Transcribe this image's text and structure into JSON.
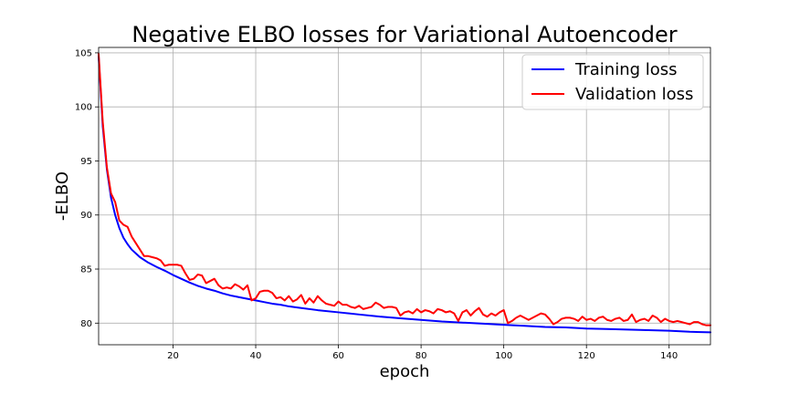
{
  "chart_data": {
    "type": "line",
    "title": "Negative ELBO losses for Variational Autoencoder",
    "xlabel": "epoch",
    "ylabel": "-ELBO",
    "xlim": [
      2,
      150
    ],
    "ylim": [
      78.0,
      105.5
    ],
    "xticks": [
      20,
      40,
      60,
      80,
      100,
      120,
      140
    ],
    "yticks": [
      80,
      85,
      90,
      95,
      100,
      105
    ],
    "grid": true,
    "legend": "top-right",
    "series": [
      {
        "name": "Training loss",
        "color": "#0000ff",
        "x": [
          2,
          3,
          4,
          5,
          6,
          7,
          8,
          9,
          10,
          12,
          14,
          16,
          18,
          20,
          22,
          24,
          26,
          28,
          30,
          32,
          34,
          36,
          38,
          40,
          42,
          44,
          46,
          48,
          50,
          55,
          60,
          65,
          70,
          75,
          80,
          85,
          90,
          95,
          100,
          105,
          110,
          115,
          120,
          125,
          130,
          135,
          140,
          145,
          150
        ],
        "y": [
          104.7,
          98.2,
          94.2,
          91.6,
          90.0,
          88.8,
          87.9,
          87.3,
          86.8,
          86.1,
          85.6,
          85.2,
          84.85,
          84.45,
          84.1,
          83.75,
          83.45,
          83.2,
          83.0,
          82.75,
          82.55,
          82.4,
          82.25,
          82.1,
          81.95,
          81.8,
          81.7,
          81.55,
          81.45,
          81.2,
          81.0,
          80.8,
          80.6,
          80.45,
          80.3,
          80.15,
          80.05,
          79.95,
          79.85,
          79.75,
          79.65,
          79.6,
          79.5,
          79.45,
          79.4,
          79.35,
          79.3,
          79.2,
          79.15
        ]
      },
      {
        "name": "Validation loss",
        "color": "#ff0000",
        "x": [
          2,
          3,
          4,
          5,
          6,
          7,
          8,
          9,
          10,
          11,
          12,
          13,
          14,
          15,
          16,
          17,
          18,
          19,
          20,
          21,
          22,
          23,
          24,
          25,
          26,
          27,
          28,
          29,
          30,
          31,
          32,
          33,
          34,
          35,
          36,
          37,
          38,
          39,
          40,
          41,
          42,
          43,
          44,
          45,
          46,
          47,
          48,
          49,
          50,
          51,
          52,
          53,
          54,
          55,
          56,
          57,
          58,
          59,
          60,
          61,
          62,
          63,
          64,
          65,
          66,
          67,
          68,
          69,
          70,
          71,
          72,
          73,
          74,
          75,
          76,
          77,
          78,
          79,
          80,
          81,
          82,
          83,
          84,
          85,
          86,
          87,
          88,
          89,
          90,
          91,
          92,
          93,
          94,
          95,
          96,
          97,
          98,
          99,
          100,
          101,
          102,
          103,
          104,
          105,
          106,
          107,
          108,
          109,
          110,
          111,
          112,
          113,
          114,
          115,
          116,
          117,
          118,
          119,
          120,
          121,
          122,
          123,
          124,
          125,
          126,
          127,
          128,
          129,
          130,
          131,
          132,
          133,
          134,
          135,
          136,
          137,
          138,
          139,
          140,
          141,
          142,
          143,
          144,
          145,
          146,
          147,
          148,
          149,
          150
        ],
        "y": [
          104.9,
          98.6,
          94.4,
          92.0,
          91.2,
          89.5,
          89.1,
          88.9,
          88.0,
          87.4,
          86.8,
          86.2,
          86.2,
          86.1,
          86.0,
          85.8,
          85.3,
          85.4,
          85.4,
          85.4,
          85.3,
          84.6,
          84.0,
          84.1,
          84.5,
          84.4,
          83.7,
          83.9,
          84.1,
          83.5,
          83.2,
          83.3,
          83.2,
          83.6,
          83.4,
          83.1,
          83.5,
          82.1,
          82.3,
          82.9,
          83.0,
          83.0,
          82.8,
          82.3,
          82.4,
          82.1,
          82.5,
          82.0,
          82.2,
          82.6,
          81.8,
          82.3,
          81.9,
          82.5,
          82.1,
          81.8,
          81.7,
          81.6,
          82.0,
          81.7,
          81.7,
          81.5,
          81.4,
          81.6,
          81.3,
          81.4,
          81.5,
          81.9,
          81.7,
          81.4,
          81.5,
          81.5,
          81.4,
          80.7,
          81.0,
          81.1,
          80.9,
          81.3,
          81.0,
          81.2,
          81.1,
          80.9,
          81.3,
          81.2,
          81.0,
          81.1,
          80.9,
          80.2,
          81.0,
          81.2,
          80.7,
          81.1,
          81.4,
          80.8,
          80.6,
          80.9,
          80.7,
          81.0,
          81.2,
          80.0,
          80.2,
          80.5,
          80.7,
          80.5,
          80.3,
          80.5,
          80.7,
          80.9,
          80.8,
          80.4,
          79.9,
          80.1,
          80.4,
          80.5,
          80.5,
          80.4,
          80.2,
          80.6,
          80.3,
          80.4,
          80.2,
          80.5,
          80.6,
          80.3,
          80.2,
          80.4,
          80.5,
          80.2,
          80.3,
          80.8,
          80.1,
          80.3,
          80.4,
          80.2,
          80.7,
          80.5,
          80.1,
          80.4,
          80.2,
          80.1,
          80.2,
          80.1,
          80.0,
          79.9,
          80.1,
          80.1,
          79.9,
          79.8,
          79.8
        ]
      }
    ]
  }
}
